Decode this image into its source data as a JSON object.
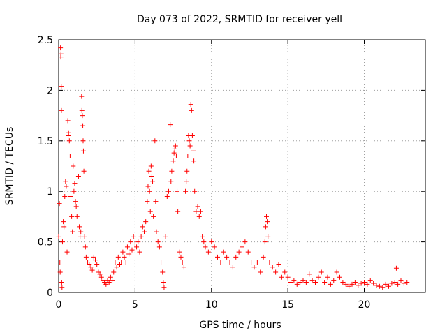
{
  "chart_data": {
    "type": "scatter",
    "title": "Day 073 of 2022, SRMTID for receiver yell",
    "xlabel": "GPS time / hours",
    "ylabel": "SRMTID / TECUs",
    "xlim": [
      0,
      24
    ],
    "ylim": [
      0,
      2.5
    ],
    "x_ticks": [
      0,
      5,
      10,
      15,
      20
    ],
    "y_ticks": [
      0,
      0.5,
      1,
      1.5,
      2,
      2.5
    ],
    "x_tick_labels": [
      "0",
      "5",
      "10",
      "15",
      "20"
    ],
    "y_tick_labels": [
      "0",
      "0.5",
      "1",
      "1.5",
      "2",
      "2.5"
    ],
    "grid": true,
    "marker": "+",
    "series": [
      {
        "name": "SRMTID",
        "color": "#ff0000",
        "points": [
          [
            0.0,
            0.55
          ],
          [
            0.05,
            0.88
          ],
          [
            0.08,
            0.3
          ],
          [
            0.1,
            0.2
          ],
          [
            0.12,
            2.42
          ],
          [
            0.14,
            2.33
          ],
          [
            0.15,
            2.36
          ],
          [
            0.17,
            2.04
          ],
          [
            0.18,
            1.8
          ],
          [
            0.2,
            0.1
          ],
          [
            0.22,
            0.05
          ],
          [
            0.25,
            0.5
          ],
          [
            0.3,
            0.7
          ],
          [
            0.35,
            0.65
          ],
          [
            0.4,
            0.95
          ],
          [
            0.45,
            1.1
          ],
          [
            0.5,
            1.05
          ],
          [
            0.55,
            0.4
          ],
          [
            0.6,
            1.7
          ],
          [
            0.62,
            1.55
          ],
          [
            0.65,
            1.58
          ],
          [
            0.7,
            1.5
          ],
          [
            0.75,
            1.35
          ],
          [
            0.8,
            0.95
          ],
          [
            0.85,
            0.75
          ],
          [
            0.9,
            0.6
          ],
          [
            0.95,
            1.25
          ],
          [
            1.0,
            1.0
          ],
          [
            1.05,
            1.08
          ],
          [
            1.1,
            0.9
          ],
          [
            1.15,
            0.85
          ],
          [
            1.2,
            0.75
          ],
          [
            1.3,
            1.15
          ],
          [
            1.35,
            0.65
          ],
          [
            1.4,
            0.55
          ],
          [
            1.45,
            0.6
          ],
          [
            1.5,
            1.94
          ],
          [
            1.52,
            1.8
          ],
          [
            1.55,
            1.75
          ],
          [
            1.58,
            1.65
          ],
          [
            1.6,
            1.5
          ],
          [
            1.62,
            1.4
          ],
          [
            1.65,
            1.2
          ],
          [
            1.7,
            0.55
          ],
          [
            1.75,
            0.45
          ],
          [
            1.8,
            0.35
          ],
          [
            1.9,
            0.3
          ],
          [
            2.0,
            0.28
          ],
          [
            2.1,
            0.25
          ],
          [
            2.2,
            0.22
          ],
          [
            2.3,
            0.35
          ],
          [
            2.4,
            0.32
          ],
          [
            2.5,
            0.28
          ],
          [
            2.6,
            0.2
          ],
          [
            2.7,
            0.18
          ],
          [
            2.8,
            0.15
          ],
          [
            2.9,
            0.12
          ],
          [
            3.0,
            0.1
          ],
          [
            3.1,
            0.08
          ],
          [
            3.2,
            0.12
          ],
          [
            3.3,
            0.1
          ],
          [
            3.4,
            0.15
          ],
          [
            3.5,
            0.12
          ],
          [
            3.6,
            0.2
          ],
          [
            3.7,
            0.3
          ],
          [
            3.8,
            0.25
          ],
          [
            3.9,
            0.35
          ],
          [
            4.0,
            0.28
          ],
          [
            4.1,
            0.3
          ],
          [
            4.2,
            0.4
          ],
          [
            4.3,
            0.35
          ],
          [
            4.4,
            0.3
          ],
          [
            4.5,
            0.45
          ],
          [
            4.6,
            0.38
          ],
          [
            4.7,
            0.5
          ],
          [
            4.8,
            0.42
          ],
          [
            4.9,
            0.55
          ],
          [
            5.0,
            0.48
          ],
          [
            5.1,
            0.45
          ],
          [
            5.2,
            0.5
          ],
          [
            5.3,
            0.4
          ],
          [
            5.4,
            0.55
          ],
          [
            5.5,
            0.65
          ],
          [
            5.6,
            0.6
          ],
          [
            5.7,
            0.7
          ],
          [
            5.8,
            0.9
          ],
          [
            5.85,
            1.05
          ],
          [
            5.9,
            1.2
          ],
          [
            5.95,
            1.0
          ],
          [
            6.0,
            0.8
          ],
          [
            6.05,
            1.25
          ],
          [
            6.1,
            1.15
          ],
          [
            6.15,
            1.1
          ],
          [
            6.2,
            0.75
          ],
          [
            6.3,
            1.5
          ],
          [
            6.35,
            0.9
          ],
          [
            6.4,
            0.6
          ],
          [
            6.5,
            0.5
          ],
          [
            6.6,
            0.45
          ],
          [
            6.7,
            0.3
          ],
          [
            6.8,
            0.2
          ],
          [
            6.85,
            0.1
          ],
          [
            6.9,
            0.05
          ],
          [
            7.0,
            0.55
          ],
          [
            7.1,
            0.95
          ],
          [
            7.2,
            1.0
          ],
          [
            7.3,
            1.66
          ],
          [
            7.35,
            1.1
          ],
          [
            7.4,
            1.2
          ],
          [
            7.5,
            1.3
          ],
          [
            7.55,
            1.38
          ],
          [
            7.6,
            1.42
          ],
          [
            7.65,
            1.45
          ],
          [
            7.7,
            1.35
          ],
          [
            7.75,
            1.0
          ],
          [
            7.8,
            0.8
          ],
          [
            7.9,
            0.4
          ],
          [
            8.0,
            0.35
          ],
          [
            8.1,
            0.3
          ],
          [
            8.2,
            0.25
          ],
          [
            8.3,
            1.0
          ],
          [
            8.35,
            1.1
          ],
          [
            8.4,
            1.2
          ],
          [
            8.45,
            1.35
          ],
          [
            8.5,
            1.55
          ],
          [
            8.55,
            1.5
          ],
          [
            8.6,
            1.45
          ],
          [
            8.65,
            1.86
          ],
          [
            8.7,
            1.8
          ],
          [
            8.75,
            1.55
          ],
          [
            8.8,
            1.4
          ],
          [
            8.85,
            1.3
          ],
          [
            8.9,
            1.0
          ],
          [
            9.0,
            0.8
          ],
          [
            9.1,
            0.85
          ],
          [
            9.2,
            0.75
          ],
          [
            9.3,
            0.8
          ],
          [
            9.4,
            0.55
          ],
          [
            9.5,
            0.5
          ],
          [
            9.6,
            0.45
          ],
          [
            9.8,
            0.4
          ],
          [
            10.0,
            0.5
          ],
          [
            10.2,
            0.45
          ],
          [
            10.4,
            0.35
          ],
          [
            10.6,
            0.3
          ],
          [
            10.8,
            0.4
          ],
          [
            11.0,
            0.35
          ],
          [
            11.2,
            0.3
          ],
          [
            11.4,
            0.25
          ],
          [
            11.6,
            0.35
          ],
          [
            11.8,
            0.4
          ],
          [
            12.0,
            0.45
          ],
          [
            12.2,
            0.5
          ],
          [
            12.4,
            0.4
          ],
          [
            12.6,
            0.3
          ],
          [
            12.8,
            0.25
          ],
          [
            13.0,
            0.3
          ],
          [
            13.2,
            0.2
          ],
          [
            13.4,
            0.35
          ],
          [
            13.5,
            0.5
          ],
          [
            13.55,
            0.65
          ],
          [
            13.6,
            0.75
          ],
          [
            13.65,
            0.7
          ],
          [
            13.7,
            0.55
          ],
          [
            13.8,
            0.3
          ],
          [
            14.0,
            0.25
          ],
          [
            14.2,
            0.2
          ],
          [
            14.4,
            0.28
          ],
          [
            14.6,
            0.15
          ],
          [
            14.8,
            0.2
          ],
          [
            15.0,
            0.15
          ],
          [
            15.2,
            0.1
          ],
          [
            15.4,
            0.12
          ],
          [
            15.6,
            0.08
          ],
          [
            15.8,
            0.1
          ],
          [
            16.0,
            0.12
          ],
          [
            16.2,
            0.1
          ],
          [
            16.4,
            0.18
          ],
          [
            16.6,
            0.12
          ],
          [
            16.8,
            0.1
          ],
          [
            17.0,
            0.15
          ],
          [
            17.2,
            0.2
          ],
          [
            17.4,
            0.1
          ],
          [
            17.6,
            0.15
          ],
          [
            17.8,
            0.08
          ],
          [
            18.0,
            0.12
          ],
          [
            18.2,
            0.2
          ],
          [
            18.4,
            0.15
          ],
          [
            18.6,
            0.1
          ],
          [
            18.8,
            0.08
          ],
          [
            19.0,
            0.06
          ],
          [
            19.2,
            0.08
          ],
          [
            19.4,
            0.1
          ],
          [
            19.6,
            0.07
          ],
          [
            19.8,
            0.09
          ],
          [
            20.0,
            0.1
          ],
          [
            20.2,
            0.08
          ],
          [
            20.4,
            0.12
          ],
          [
            20.6,
            0.09
          ],
          [
            20.8,
            0.07
          ],
          [
            21.0,
            0.06
          ],
          [
            21.2,
            0.05
          ],
          [
            21.4,
            0.08
          ],
          [
            21.6,
            0.06
          ],
          [
            21.8,
            0.09
          ],
          [
            22.0,
            0.1
          ],
          [
            22.1,
            0.24
          ],
          [
            22.2,
            0.08
          ],
          [
            22.4,
            0.12
          ],
          [
            22.6,
            0.09
          ],
          [
            22.8,
            0.1
          ]
        ]
      }
    ]
  }
}
